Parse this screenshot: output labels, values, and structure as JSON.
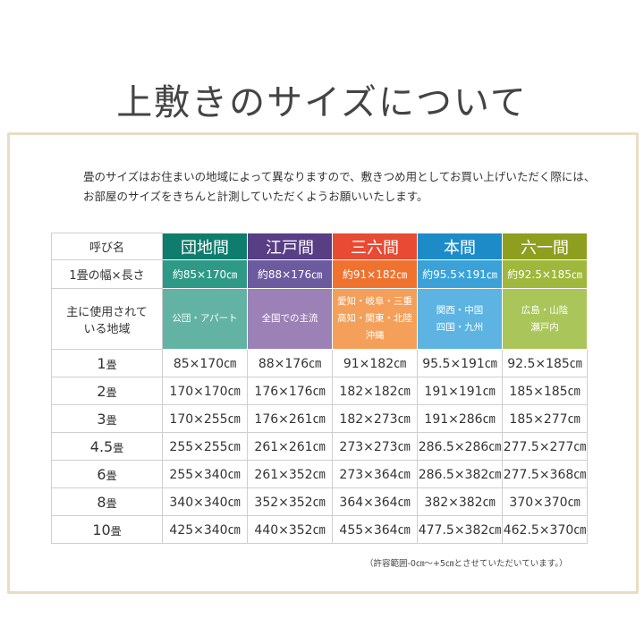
{
  "title": "上敷きのサイズについて",
  "intro": [
    "畳のサイズはお住まいの地域によって異なりますので、敷きつめ用としてお買い上げいただく際には、",
    "お部屋のサイズをきちんと計測していただくようお願いいたします。"
  ],
  "row_labels": {
    "name": "呼び名",
    "width": "1畳の幅×長さ",
    "region": [
      "主に使用されて",
      "いる地域"
    ]
  },
  "columns": [
    {
      "name": "団地間",
      "size": "約85×170㎝",
      "region": [
        "公団・アパート"
      ],
      "colors": [
        "#0f7d6d",
        "#2f9987",
        "#62b3a3"
      ]
    },
    {
      "name": "江戸間",
      "size": "約88×176㎝",
      "region": [
        "全国での主流"
      ],
      "colors": [
        "#573e85",
        "#6b5a9e",
        "#9b81b6"
      ]
    },
    {
      "name": "三六間",
      "size": "約91×182㎝",
      "region": [
        "愛知・岐阜・三重",
        "高知・関東・北陸",
        "沖縄"
      ],
      "colors": [
        "#e84a33",
        "#f0722f",
        "#f4a05b"
      ]
    },
    {
      "name": "本間",
      "size": "約95.5×191㎝",
      "region": [
        "関西・中国",
        "四国・九州"
      ],
      "colors": [
        "#1e8bc9",
        "#3aa2d9",
        "#5db4e3"
      ]
    },
    {
      "name": "六一間",
      "size": "約92.5×185㎝",
      "region": [
        "広島・山陰",
        "瀬戸内"
      ],
      "colors": [
        "#8e9f1f",
        "#9fb83b",
        "#aac65a"
      ]
    }
  ],
  "rows": [
    {
      "num": "1",
      "unit": "畳",
      "values": [
        "85×170㎝",
        "88×176㎝",
        "91×182㎝",
        "95.5×191㎝",
        "92.5×185㎝"
      ]
    },
    {
      "num": "2",
      "unit": "畳",
      "values": [
        "170×170㎝",
        "176×176㎝",
        "182×182㎝",
        "191×191㎝",
        "185×185㎝"
      ]
    },
    {
      "num": "3",
      "unit": "畳",
      "values": [
        "170×255㎝",
        "176×261㎝",
        "182×273㎝",
        "191×286㎝",
        "185×277㎝"
      ]
    },
    {
      "num": "4.5",
      "unit": "畳",
      "values": [
        "255×255㎝",
        "261×261㎝",
        "273×273㎝",
        "286.5×286㎝",
        "277.5×277㎝"
      ]
    },
    {
      "num": "6",
      "unit": "畳",
      "values": [
        "255×340㎝",
        "261×352㎝",
        "273×364㎝",
        "286.5×382㎝",
        "277.5×368㎝"
      ]
    },
    {
      "num": "8",
      "unit": "畳",
      "values": [
        "340×340㎝",
        "352×352㎝",
        "364×364㎝",
        "382×382㎝",
        "370×370㎝"
      ]
    },
    {
      "num": "10",
      "unit": "畳",
      "values": [
        "425×340㎝",
        "440×352㎝",
        "455×364㎝",
        "477.5×382㎝",
        "462.5×370㎝"
      ]
    }
  ],
  "note": "（許容範囲-0㎝～+5㎝とさせていただいています。）"
}
